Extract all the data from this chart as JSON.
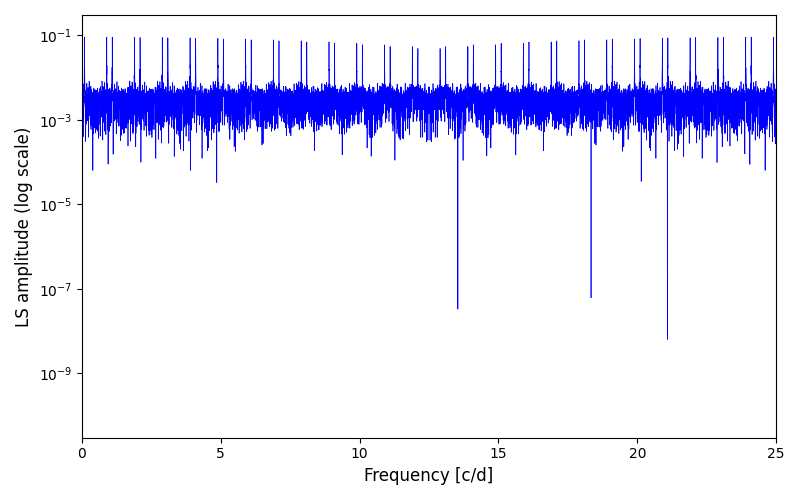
{
  "title": "",
  "xlabel": "Frequency [c/d]",
  "ylabel": "LS amplitude (log scale)",
  "xlim": [
    0,
    25
  ],
  "ylim": [
    3e-11,
    0.3
  ],
  "line_color": "#0000ff",
  "line_width": 0.5,
  "figsize": [
    8.0,
    5.0
  ],
  "dpi": 100,
  "background_color": "#ffffff",
  "seed": 12345,
  "n_freq": 8000,
  "freq_max": 25.0,
  "yticks": [
    1e-09,
    1e-07,
    1e-05,
    0.001,
    0.1
  ],
  "signal_freq": 0.9,
  "n_obs": 365,
  "obs_span": 365.0
}
